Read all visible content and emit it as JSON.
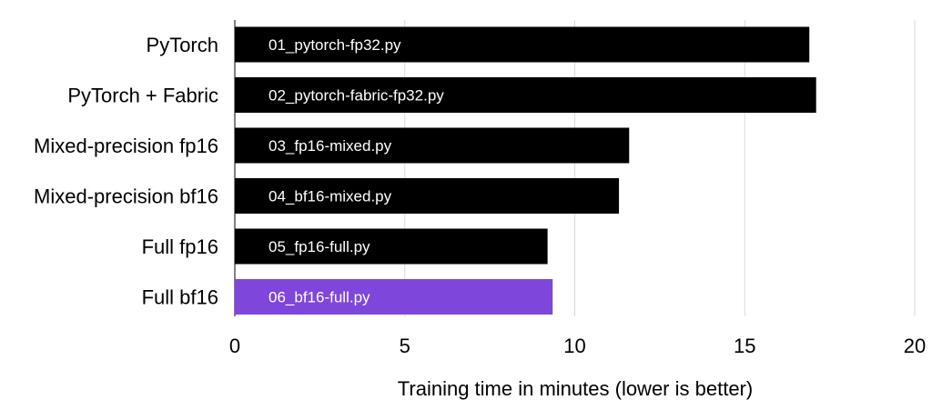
{
  "chart_data": {
    "type": "bar",
    "orientation": "horizontal",
    "categories": [
      "PyTorch",
      "PyTorch + Fabric",
      "Mixed-precision fp16",
      "Mixed-precision bf16",
      "Full fp16",
      "Full bf16"
    ],
    "bar_labels": [
      "01_pytorch-fp32.py",
      "02_pytorch-fabric-fp32.py",
      "03_fp16-mixed.py",
      "04_bf16-mixed.py",
      "05_fp16-full.py",
      "06_bf16-full.py"
    ],
    "values": [
      16.9,
      17.1,
      11.6,
      11.3,
      9.2,
      9.35
    ],
    "colors": [
      "#000000",
      "#000000",
      "#000000",
      "#000000",
      "#000000",
      "#7f46db"
    ],
    "xlabel": "Training time in minutes (lower is better)",
    "ylabel": "",
    "title": "",
    "xlim": [
      0,
      20
    ],
    "xticks": [
      0,
      5,
      10,
      15,
      20
    ],
    "grid": true,
    "legend": "none"
  }
}
